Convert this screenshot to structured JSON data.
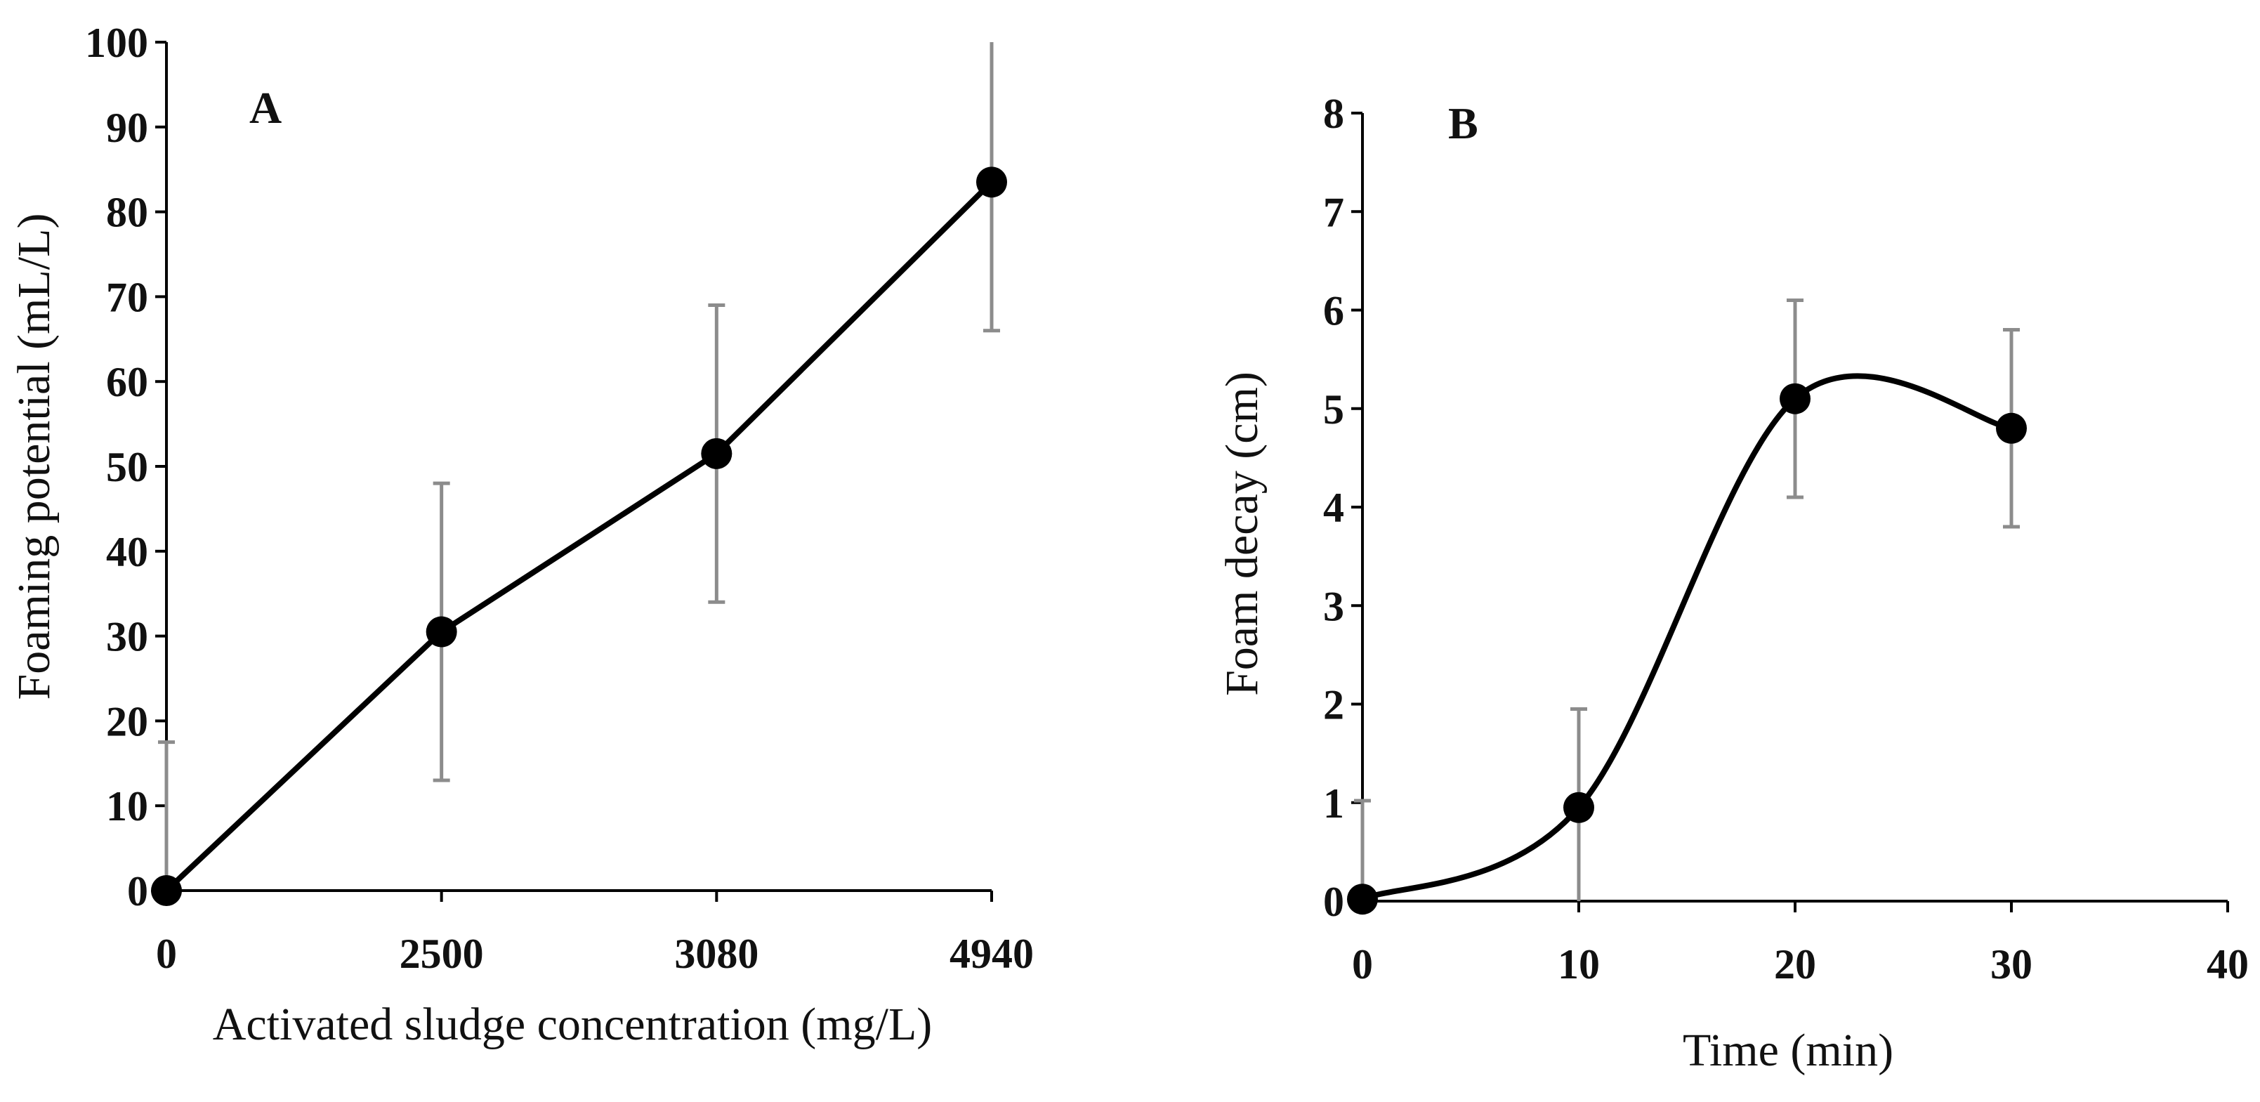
{
  "chart_data": [
    {
      "type": "line",
      "panel_label": "A",
      "title": "",
      "xlabel": "Activated sludge concentration (mg/L)",
      "ylabel": "Foaming potential (mL/L)",
      "categories": [
        "0",
        "2500",
        "3080",
        "4940"
      ],
      "values": [
        0,
        30.5,
        51.5,
        83.5
      ],
      "error": [
        17.5,
        17.5,
        17.5,
        17.5
      ],
      "ylim": [
        0,
        100
      ],
      "yticks": [
        "0",
        "10",
        "20",
        "30",
        "40",
        "50",
        "60",
        "70",
        "80",
        "90",
        "100"
      ],
      "grid": false,
      "legend": false,
      "marker": "circle",
      "error_bar_color": "#8c8c8c",
      "line_color": "#000000"
    },
    {
      "type": "line",
      "panel_label": "B",
      "title": "",
      "xlabel": "Time (min)",
      "ylabel": "Foam decay (cm)",
      "x": [
        0,
        10,
        20,
        30
      ],
      "values": [
        0.02,
        0.95,
        5.1,
        4.8
      ],
      "error": [
        1.0,
        1.0,
        1.0,
        1.0
      ],
      "smooth": true,
      "xlim": [
        0,
        40
      ],
      "ylim": [
        0,
        8
      ],
      "xticks": [
        "0",
        "10",
        "20",
        "30",
        "40"
      ],
      "yticks": [
        "0",
        "1",
        "2",
        "3",
        "4",
        "5",
        "6",
        "7",
        "8"
      ],
      "grid": false,
      "legend": false,
      "marker": "circle",
      "error_bar_color": "#8c8c8c",
      "line_color": "#000000"
    }
  ]
}
